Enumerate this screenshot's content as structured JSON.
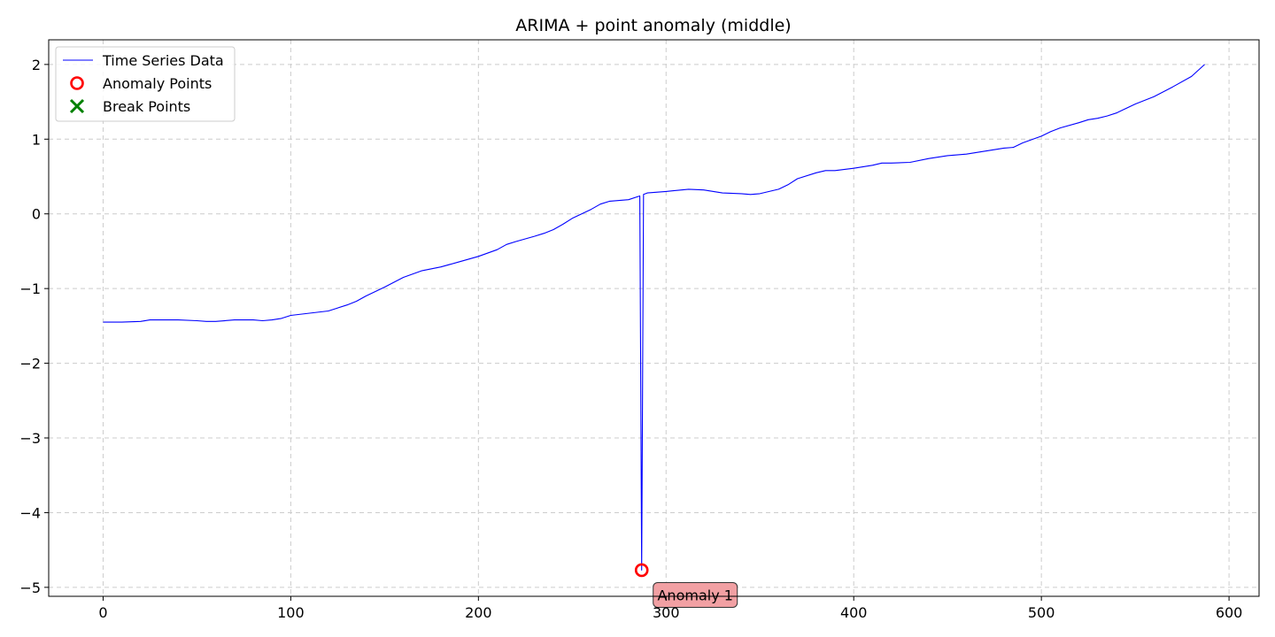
{
  "chart_data": {
    "type": "line",
    "title": "ARIMA + point anomaly (middle)",
    "xlabel": "",
    "ylabel": "",
    "xlim": [
      -29,
      616
    ],
    "ylim": [
      -5.12,
      2.33
    ],
    "xticks": [
      0,
      100,
      200,
      300,
      400,
      500,
      600
    ],
    "yticks": [
      -5,
      -4,
      -3,
      -2,
      -1,
      0,
      1,
      2
    ],
    "xtick_labels": [
      "0",
      "100",
      "200",
      "300",
      "400",
      "500",
      "600"
    ],
    "ytick_labels": [
      "−5",
      "−4",
      "−3",
      "−2",
      "−1",
      "0",
      "1",
      "2"
    ],
    "grid": true,
    "legend_placement": "upper-left",
    "colors": {
      "series": "#0000ff",
      "anomaly": "#ff0000",
      "break": "#008000",
      "grid": "#cccccc",
      "annotation_bg": "#f1a0a3"
    },
    "legend": [
      {
        "label": "Time Series Data",
        "marker": "line"
      },
      {
        "label": "Anomaly Points",
        "marker": "circle"
      },
      {
        "label": "Break Points",
        "marker": "x"
      }
    ],
    "series": [
      {
        "name": "Time Series Data",
        "x": [
          0,
          10,
          20,
          25,
          30,
          40,
          50,
          55,
          60,
          70,
          80,
          85,
          90,
          95,
          100,
          110,
          120,
          130,
          135,
          140,
          150,
          160,
          170,
          180,
          190,
          200,
          210,
          215,
          220,
          230,
          235,
          240,
          245,
          250,
          260,
          265,
          270,
          280,
          286,
          287,
          288,
          290,
          300,
          312,
          320,
          330,
          340,
          345,
          350,
          360,
          365,
          370,
          380,
          385,
          390,
          400,
          410,
          415,
          420,
          430,
          440,
          450,
          460,
          470,
          480,
          485,
          490,
          500,
          505,
          510,
          520,
          525,
          530,
          535,
          540,
          550,
          560,
          570,
          580,
          587
        ],
        "values": [
          -1.45,
          -1.45,
          -1.44,
          -1.42,
          -1.42,
          -1.42,
          -1.43,
          -1.44,
          -1.44,
          -1.42,
          -1.42,
          -1.43,
          -1.42,
          -1.4,
          -1.36,
          -1.33,
          -1.3,
          -1.22,
          -1.17,
          -1.1,
          -0.98,
          -0.85,
          -0.76,
          -0.71,
          -0.64,
          -0.57,
          -0.48,
          -0.41,
          -0.37,
          -0.3,
          -0.26,
          -0.21,
          -0.14,
          -0.06,
          0.06,
          0.13,
          0.17,
          0.19,
          0.24,
          -4.77,
          0.26,
          0.28,
          0.3,
          0.33,
          0.32,
          0.28,
          0.27,
          0.26,
          0.27,
          0.33,
          0.39,
          0.47,
          0.55,
          0.58,
          0.58,
          0.61,
          0.65,
          0.68,
          0.68,
          0.69,
          0.74,
          0.78,
          0.8,
          0.84,
          0.88,
          0.89,
          0.95,
          1.04,
          1.1,
          1.15,
          1.22,
          1.26,
          1.28,
          1.31,
          1.35,
          1.47,
          1.57,
          1.7,
          1.84,
          2.0
        ]
      }
    ],
    "anomalies": [
      {
        "x": 287,
        "y": -4.77,
        "label": "Anomaly 1"
      }
    ],
    "break_points": []
  }
}
